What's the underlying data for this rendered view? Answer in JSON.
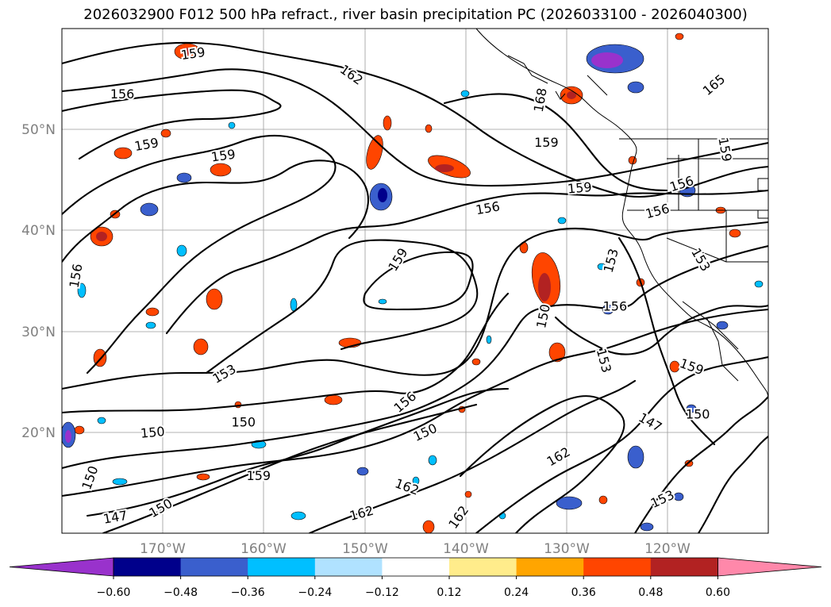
{
  "title": "2026032900 F012 500 hPa refract., river basin precipitation PC (2026033100 - 2026040300)",
  "map": {
    "lon_labels": [
      "170°W",
      "160°W",
      "150°W",
      "140°W",
      "130°W",
      "120°W"
    ],
    "lat_labels": [
      "50°N",
      "40°N",
      "30°N",
      "20°N"
    ],
    "contour_labels": [
      {
        "text": "159",
        "lon": -167.0,
        "lat": 57.5,
        "rot": -8
      },
      {
        "text": "162",
        "lon": -151.3,
        "lat": 55.4,
        "rot": 35
      },
      {
        "text": "156",
        "lon": -174.0,
        "lat": 53.5,
        "rot": 0
      },
      {
        "text": "159",
        "lon": -171.6,
        "lat": 48.5,
        "rot": -10
      },
      {
        "text": "159",
        "lon": -164.0,
        "lat": 47.4,
        "rot": -8
      },
      {
        "text": "159",
        "lon": -132.0,
        "lat": 48.7,
        "rot": 0
      },
      {
        "text": "159",
        "lon": -128.7,
        "lat": 44.2,
        "rot": -5
      },
      {
        "text": "156",
        "lon": -137.8,
        "lat": 42.2,
        "rot": -10
      },
      {
        "text": "156",
        "lon": -118.6,
        "lat": 44.6,
        "rot": -18
      },
      {
        "text": "156",
        "lon": -121.0,
        "lat": 41.9,
        "rot": -15
      },
      {
        "text": "165",
        "lon": -115.4,
        "lat": 54.4,
        "rot": -40
      },
      {
        "text": "156",
        "lon": -178.6,
        "lat": 35.5,
        "rot": -80
      },
      {
        "text": "159",
        "lon": -146.7,
        "lat": 37.1,
        "rot": -58
      },
      {
        "text": "150",
        "lon": -132.3,
        "lat": 31.5,
        "rot": -78
      },
      {
        "text": "156",
        "lon": -125.2,
        "lat": 32.5,
        "rot": 0
      },
      {
        "text": "153",
        "lon": -125.6,
        "lat": 37.0,
        "rot": -75
      },
      {
        "text": "153",
        "lon": -126.3,
        "lat": 27.1,
        "rot": 75
      },
      {
        "text": "153",
        "lon": -163.9,
        "lat": 25.8,
        "rot": -30
      },
      {
        "text": "150",
        "lon": -162.0,
        "lat": 21.0,
        "rot": 0
      },
      {
        "text": "150",
        "lon": -171.0,
        "lat": 20.0,
        "rot": -5
      },
      {
        "text": "150",
        "lon": -144.0,
        "lat": 20.0,
        "rot": -25
      },
      {
        "text": "156",
        "lon": -146.0,
        "lat": 23.0,
        "rot": -40
      },
      {
        "text": "162",
        "lon": -130.8,
        "lat": 17.6,
        "rot": -30
      },
      {
        "text": "162",
        "lon": -145.8,
        "lat": 14.6,
        "rot": 20
      },
      {
        "text": "162",
        "lon": -150.3,
        "lat": 12.0,
        "rot": -15
      },
      {
        "text": "162",
        "lon": -140.7,
        "lat": 11.6,
        "rot": -55
      },
      {
        "text": "159",
        "lon": -160.5,
        "lat": 15.7,
        "rot": 0
      },
      {
        "text": "150",
        "lon": -170.2,
        "lat": 12.5,
        "rot": -30
      },
      {
        "text": "147",
        "lon": -174.7,
        "lat": 11.6,
        "rot": -10
      },
      {
        "text": "150",
        "lon": -177.2,
        "lat": 15.5,
        "rot": -70
      },
      {
        "text": "147",
        "lon": -121.7,
        "lat": 21.0,
        "rot": 30
      },
      {
        "text": "150",
        "lon": -117.0,
        "lat": 21.8,
        "rot": 0
      },
      {
        "text": "153",
        "lon": -120.5,
        "lat": 13.4,
        "rot": -25
      },
      {
        "text": "159",
        "lon": -117.6,
        "lat": 26.5,
        "rot": 20
      },
      {
        "text": "153",
        "lon": -116.7,
        "lat": 37.1,
        "rot": 60
      },
      {
        "text": "159",
        "lon": -114.3,
        "lat": 48.0,
        "rot": 80
      },
      {
        "text": "168",
        "lon": -132.6,
        "lat": 52.9,
        "rot": -80
      }
    ]
  },
  "colorbar": {
    "ticks": [
      "−0.60",
      "−0.48",
      "−0.36",
      "−0.24",
      "−0.12",
      "0.12",
      "0.24",
      "0.36",
      "0.48",
      "0.60"
    ],
    "colors": [
      "#9932cc",
      "#00008b",
      "#3a5fcd",
      "#00bfff",
      "#b0e2ff",
      "#ffffff",
      "#ffec8b",
      "#ffa500",
      "#ff4500",
      "#b22222",
      "#ff88aa"
    ]
  }
}
